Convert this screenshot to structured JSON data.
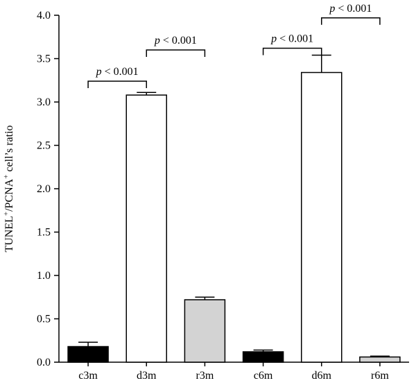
{
  "chart_data": {
    "type": "bar",
    "categories": [
      "c3m",
      "d3m",
      "r3m",
      "c6m",
      "d6m",
      "r6m"
    ],
    "values": [
      0.18,
      3.08,
      0.72,
      0.12,
      3.34,
      0.06
    ],
    "errors": [
      0.05,
      0.03,
      0.03,
      0.02,
      0.2,
      0.01
    ],
    "bar_colors": [
      "#000000",
      "#ffffff",
      "#d3d3d3",
      "#000000",
      "#ffffff",
      "#d3d3d3"
    ],
    "ylabel_parts": [
      "TUNEL",
      "+",
      "/PCNA",
      "+",
      " cell’s ratio"
    ],
    "ylim": [
      0,
      4.0
    ],
    "yticks": [
      "0.0",
      "0.5",
      "1.0",
      "1.5",
      "2.0",
      "2.5",
      "3.0",
      "3.5",
      "4.0"
    ],
    "significance": [
      {
        "from": 0,
        "to": 1,
        "y": 3.24,
        "p": "p",
        "text": " < 0.001"
      },
      {
        "from": 1,
        "to": 2,
        "y": 3.6,
        "p": "p",
        "text": " < 0.001"
      },
      {
        "from": 3,
        "to": 4,
        "y": 3.62,
        "p": "p",
        "text": " < 0.001"
      },
      {
        "from": 4,
        "to": 5,
        "y": 3.97,
        "p": "p",
        "text": " < 0.001"
      }
    ],
    "grid": false
  }
}
